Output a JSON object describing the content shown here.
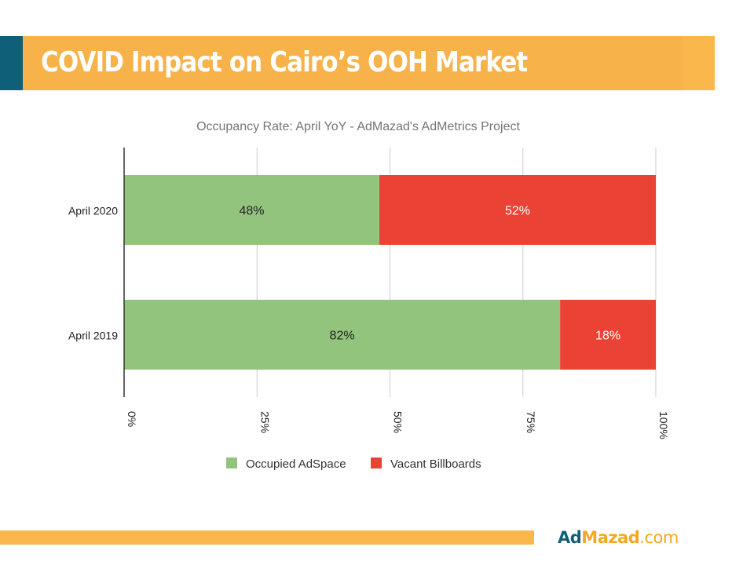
{
  "header": {
    "title": "COVID Impact on Cairo’s OOH Market"
  },
  "brand": {
    "ad": "Ad",
    "mazad": "Mazad",
    "com": ".com"
  },
  "colors": {
    "accent_teal": "#0f5f78",
    "accent_orange": "#f9b74c",
    "occupied": "#93c47d",
    "vacant": "#ea4335"
  },
  "chart_data": {
    "type": "bar",
    "orientation": "horizontal",
    "stacked": true,
    "title": "Occupancy Rate: April YoY - AdMazad's AdMetrics Project",
    "categories": [
      "April 2020",
      "April 2019"
    ],
    "series": [
      {
        "name": "Occupied AdSpace",
        "values": [
          48,
          82
        ],
        "labels": [
          "48%",
          "82%"
        ],
        "color": "#93c47d",
        "label_color": "#222222"
      },
      {
        "name": "Vacant Billboards",
        "values": [
          52,
          18
        ],
        "labels": [
          "52%",
          "18%"
        ],
        "color": "#ea4335",
        "label_color": "#ffffff"
      }
    ],
    "xlim": [
      0,
      100
    ],
    "xticks": [
      0,
      25,
      50,
      75,
      100
    ],
    "xtick_labels": [
      "0%",
      "25%",
      "50%",
      "75%",
      "100%"
    ],
    "grid": true,
    "legend": "bottom",
    "xlabel": "",
    "ylabel": ""
  }
}
